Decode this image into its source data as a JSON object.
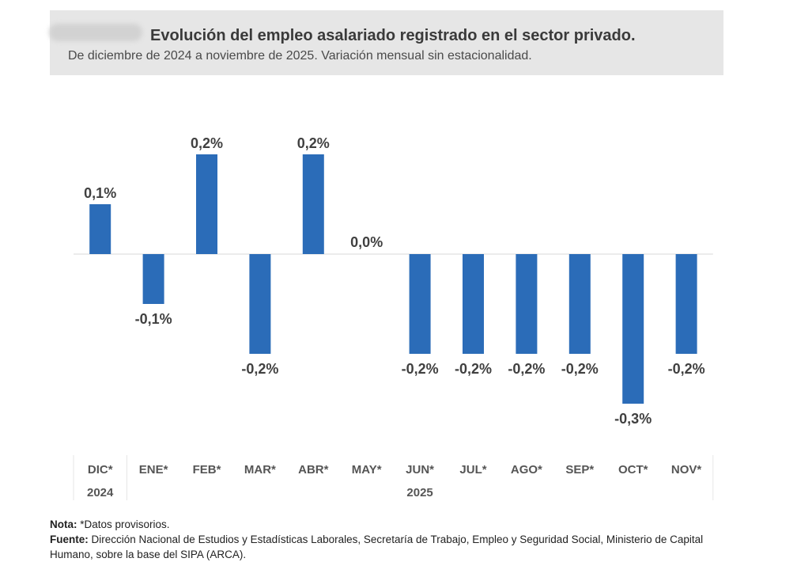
{
  "header": {
    "title": "Evolución del empleo asalariado registrado en el sector privado.",
    "subtitle": "De diciembre de 2024 a noviembre de 2025. Variación mensual sin estacionalidad."
  },
  "colors": {
    "bar": "#2b6cb8",
    "header_bg": "#e6e6e6",
    "label": "#404040"
  },
  "chart_data": {
    "type": "bar",
    "title": "Evolución del empleo asalariado registrado en el sector privado.",
    "subtitle": "De diciembre de 2024 a noviembre de 2025. Variación mensual sin estacionalidad.",
    "categories": [
      "DIC*",
      "ENE*",
      "FEB*",
      "MAR*",
      "ABR*",
      "MAY*",
      "JUN*",
      "JUL*",
      "AGO*",
      "SEP*",
      "OCT*",
      "NOV*"
    ],
    "values": [
      0.1,
      -0.1,
      0.2,
      -0.2,
      0.2,
      0.0,
      -0.2,
      -0.2,
      -0.2,
      -0.2,
      -0.3,
      -0.2
    ],
    "value_labels": [
      "0,1%",
      "-0,1%",
      "0,2%",
      "-0,2%",
      "0,2%",
      "0,0%",
      "-0,2%",
      "-0,2%",
      "-0,2%",
      "-0,2%",
      "-0,3%",
      "-0,2%"
    ],
    "year_groups": [
      {
        "label": "2024",
        "start": 0,
        "end": 0
      },
      {
        "label": "2025",
        "start": 1,
        "end": 11
      }
    ],
    "unit": "%",
    "ylim": [
      -0.3,
      0.2
    ],
    "xlabel": "",
    "ylabel": ""
  },
  "notes": {
    "nota_label": "Nota:",
    "nota_text": " *Datos provisorios.",
    "fuente_label": "Fuente:",
    "fuente_text": " Dirección Nacional de Estudios y Estadísticas Laborales, Secretaría de Trabajo, Empleo y Seguridad Social, Ministerio de Capital Humano, sobre la base del SIPA (ARCA)."
  }
}
